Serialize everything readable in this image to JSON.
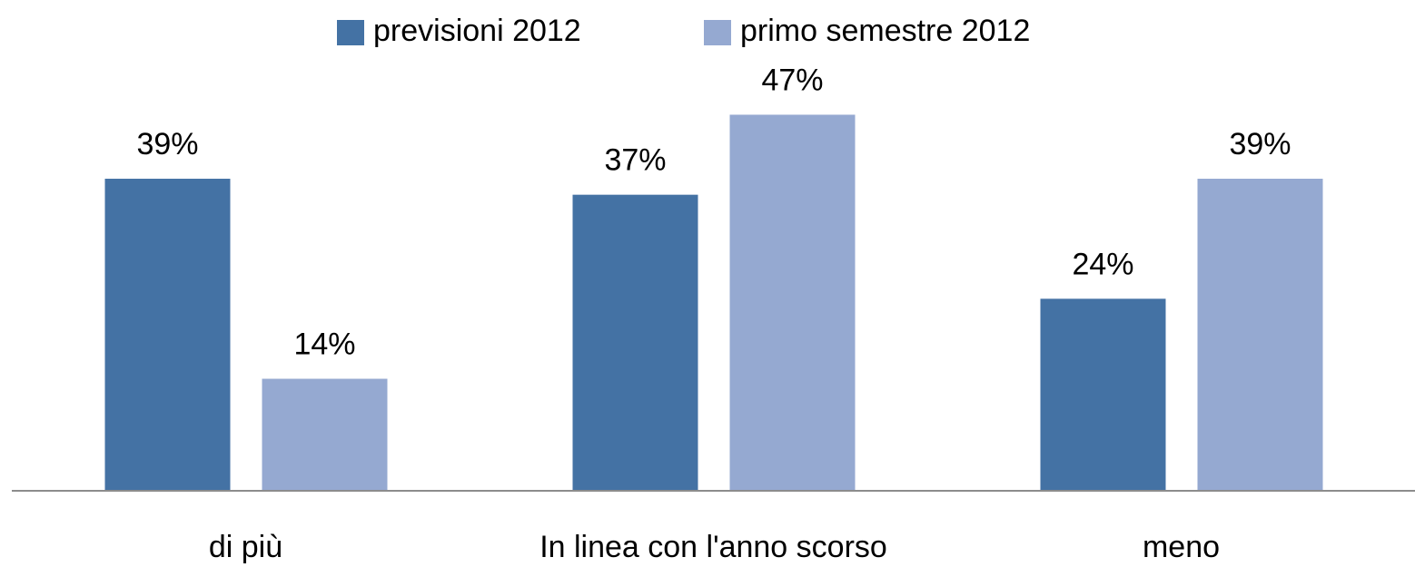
{
  "chart_data": {
    "type": "bar",
    "categories": [
      "di più",
      "In linea con l'anno scorso",
      "meno"
    ],
    "series": [
      {
        "name": "previsioni 2012",
        "color": "#4472a4",
        "values": [
          39,
          37,
          24
        ],
        "value_labels": [
          "39%",
          "37%",
          "24%"
        ]
      },
      {
        "name": "primo semestre 2012",
        "color": "#95a9d1",
        "values": [
          14,
          47,
          39
        ],
        "value_labels": [
          "14%",
          "47%",
          "39%"
        ]
      }
    ],
    "ylim": [
      0,
      50
    ],
    "legend": "top"
  }
}
